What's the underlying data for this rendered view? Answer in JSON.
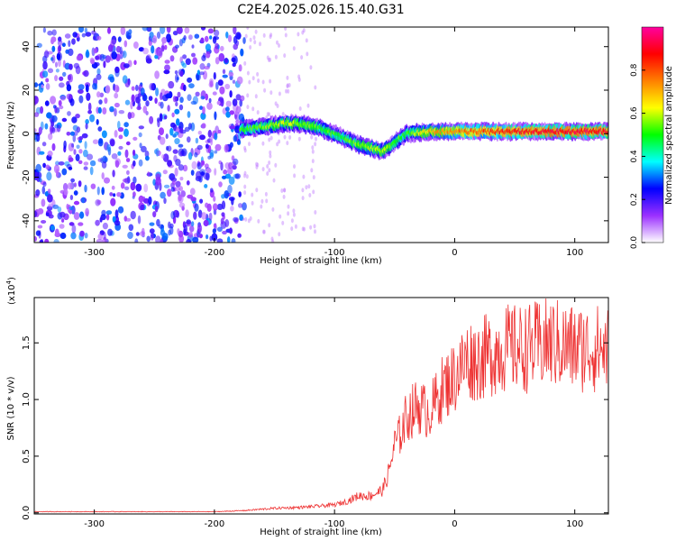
{
  "title": "C2E4.2025.026.15.40.G31",
  "chart_data": [
    {
      "type": "heatmap",
      "xlabel": "Height of straight line (km)",
      "ylabel": "Frequency (Hz)",
      "xlim": [
        -350,
        128
      ],
      "ylim": [
        -50,
        49
      ],
      "xticks": [
        -300,
        -200,
        -100,
        0,
        100
      ],
      "yticks": [
        -40,
        -20,
        0,
        20,
        40
      ],
      "colorbar": {
        "label": "Normalized spectral amplitude",
        "range": [
          0.0,
          1.0
        ],
        "ticks": [
          "0.0",
          "0.2",
          "0.4",
          "0.6",
          "0.8"
        ],
        "colormap": [
          "#ffffff",
          "#9b30ff",
          "#0000ff",
          "#00ffff",
          "#00ff00",
          "#ffff00",
          "#ff8000",
          "#ff0000",
          "#ff00a0"
        ]
      },
      "features": {
        "noise_region_x": [
          -350,
          -175
        ],
        "noise_amplitude": 0.15,
        "signal_ridge": [
          {
            "x": -178,
            "freq": 2,
            "amp": 0.5
          },
          {
            "x": -160,
            "freq": 3,
            "amp": 0.55
          },
          {
            "x": -140,
            "freq": 5,
            "amp": 0.6
          },
          {
            "x": -120,
            "freq": 4,
            "amp": 0.55
          },
          {
            "x": -100,
            "freq": 0,
            "amp": 0.5
          },
          {
            "x": -80,
            "freq": -5,
            "amp": 0.55
          },
          {
            "x": -60,
            "freq": -8,
            "amp": 0.6
          },
          {
            "x": -40,
            "freq": 0,
            "amp": 0.5
          },
          {
            "x": -20,
            "freq": 1,
            "amp": 0.7
          },
          {
            "x": 0,
            "freq": 1,
            "amp": 0.75
          },
          {
            "x": 40,
            "freq": 1,
            "amp": 0.85
          },
          {
            "x": 80,
            "freq": 1,
            "amp": 0.9
          },
          {
            "x": 128,
            "freq": 1,
            "amp": 0.9
          }
        ]
      }
    },
    {
      "type": "line",
      "xlabel": "Height of straight line (km)",
      "ylabel": "SNR (10 * v/v)",
      "yscale_label": "(x10",
      "yscale_exponent": "4",
      "xlim": [
        -350,
        128
      ],
      "ylim": [
        -0.01,
        1.9
      ],
      "xticks": [
        -300,
        -200,
        -100,
        0,
        100
      ],
      "yticks": [
        "0.0",
        "0.5",
        "1.0",
        "1.5"
      ],
      "color": "#ee3333",
      "x": [
        -350,
        -300,
        -250,
        -200,
        -175,
        -150,
        -125,
        -100,
        -90,
        -80,
        -70,
        -60,
        -55,
        -50,
        -45,
        -40,
        -35,
        -30,
        -25,
        -20,
        -10,
        0,
        10,
        20,
        30,
        40,
        60,
        80,
        100,
        128
      ],
      "y": [
        0.01,
        0.01,
        0.01,
        0.01,
        0.02,
        0.04,
        0.05,
        0.07,
        0.1,
        0.15,
        0.15,
        0.2,
        0.35,
        0.6,
        0.7,
        0.85,
        0.9,
        0.95,
        0.9,
        0.9,
        1.1,
        1.2,
        1.35,
        1.35,
        1.4,
        1.45,
        1.45,
        1.5,
        1.45,
        1.45
      ]
    }
  ]
}
